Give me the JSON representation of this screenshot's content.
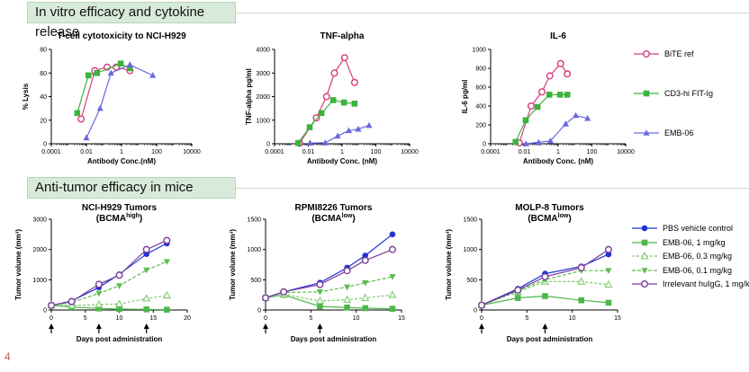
{
  "sections": {
    "top_title": "In vitro efficacy and cytokine release",
    "bottom_title": "Anti-tumor efficacy in mice"
  },
  "page_number": "4",
  "colors": {
    "bite": "#d63c7d",
    "fitig": "#3cb33c",
    "emb06": "#6a68e0",
    "pbs": "#2033d4",
    "emb_1": "#4cb74c",
    "emb_03": "#7ccc6c",
    "emb_01": "#5cbc4c",
    "irrelevant": "#7a3c98"
  },
  "legend_top": [
    {
      "label": "BiTE ref",
      "marker": "circle-open",
      "color": "#d63c7d"
    },
    {
      "label": "CD3-hi FIT-Ig",
      "marker": "square",
      "color": "#3cb33c"
    },
    {
      "label": "EMB-06",
      "marker": "triangle",
      "color": "#6a68e0"
    }
  ],
  "legend_bottom": [
    {
      "label": "PBS vehicle control",
      "marker": "circle",
      "color": "#2033d4",
      "dash": ""
    },
    {
      "label": "EMB-06, 1 mg/kg",
      "marker": "square",
      "color": "#4cb74c",
      "dash": ""
    },
    {
      "label": "EMB-06, 0.3 mg/kg",
      "marker": "triangle-open",
      "color": "#7ccc6c",
      "dash": "3,2"
    },
    {
      "label": "EMB-06, 0.1 mg/kg",
      "marker": "triangle-down",
      "color": "#5cbc4c",
      "dash": "4,2"
    },
    {
      "label": "Irrelevant huIgG, 1 mg/kg",
      "marker": "circle-open",
      "color": "#7a3c98",
      "dash": ""
    }
  ],
  "chart_data": [
    {
      "type": "line",
      "title": "T-cell cytotoxicity to NCI-H929",
      "xlabel": "Antibody Conc.(nM)",
      "ylabel": "% Lysis",
      "xscale": "log",
      "xlim": [
        0.0001,
        10000
      ],
      "xticks": [
        "0.0001",
        "0.01",
        "1",
        "100",
        "10000"
      ],
      "ylim": [
        0,
        80
      ],
      "yticks": [
        "0",
        "20",
        "40",
        "60",
        "80"
      ],
      "series": [
        {
          "name": "BiTE ref",
          "x": [
            0.005,
            0.03,
            0.15,
            0.5,
            3
          ],
          "y": [
            21,
            62,
            65,
            65,
            62
          ]
        },
        {
          "name": "CD3-hi FIT-Ig",
          "x": [
            0.003,
            0.013,
            0.04,
            0.9,
            3
          ],
          "y": [
            26,
            58,
            60,
            68,
            64
          ]
        },
        {
          "name": "EMB-06",
          "x": [
            0.01,
            0.06,
            0.25,
            3,
            60
          ],
          "y": [
            5,
            30,
            60,
            67,
            58
          ]
        }
      ]
    },
    {
      "type": "line",
      "title": "TNF-alpha",
      "xlabel": "Antibody Conc. (nM)",
      "ylabel": "TNF-alpha pg/ml",
      "xscale": "log",
      "xlim": [
        0.0001,
        10000
      ],
      "xticks": [
        "0.0001",
        "0.01",
        "1",
        "100",
        "10000"
      ],
      "ylim": [
        0,
        4000
      ],
      "yticks": [
        "0",
        "1000",
        "2000",
        "3000",
        "4000"
      ],
      "series": [
        {
          "name": "BiTE ref",
          "x": [
            0.003,
            0.03,
            0.12,
            0.35,
            1.4,
            5.5
          ],
          "y": [
            20,
            1100,
            2000,
            3000,
            3650,
            2600
          ]
        },
        {
          "name": "CD3-hi FIT-Ig",
          "x": [
            0.0025,
            0.012,
            0.06,
            0.3,
            1.3,
            5.5
          ],
          "y": [
            30,
            700,
            1300,
            1850,
            1750,
            1700
          ]
        },
        {
          "name": "EMB-06",
          "x": [
            0.0125,
            0.1,
            0.55,
            2.5,
            9,
            40
          ],
          "y": [
            30,
            40,
            330,
            560,
            620,
            780
          ]
        }
      ]
    },
    {
      "type": "line",
      "title": "IL-6",
      "xlabel": "Antibody Conc. (nM)",
      "ylabel": "IL-6 pg/ml",
      "xscale": "log",
      "xlim": [
        0.0001,
        10000
      ],
      "xticks": [
        "0.0001",
        "0.01",
        "1",
        "100",
        "10000"
      ],
      "ylim": [
        0,
        1000
      ],
      "yticks": [
        "0",
        "200",
        "400",
        "600",
        "800",
        "1000"
      ],
      "series": [
        {
          "name": "BiTE ref",
          "x": [
            0.005,
            0.025,
            0.11,
            0.32,
            1.4,
            3.5
          ],
          "y": [
            10,
            400,
            550,
            720,
            850,
            740
          ]
        },
        {
          "name": "CD3-hi FIT-Ig",
          "x": [
            0.003,
            0.012,
            0.06,
            0.3,
            1.3,
            3.5
          ],
          "y": [
            20,
            250,
            390,
            520,
            520,
            520
          ]
        },
        {
          "name": "EMB-06",
          "x": [
            0.0125,
            0.07,
            0.35,
            2.8,
            11,
            55
          ],
          "y": [
            0,
            15,
            30,
            210,
            300,
            270
          ]
        }
      ]
    },
    {
      "type": "line",
      "title": "NCI-H929 Tumors",
      "subtitle_base": "(BCMA",
      "subtitle_sup": "high",
      "subtitle_end": ")",
      "xlabel": "Days post administration",
      "ylabel": "Tumor volume (mm³)",
      "xlim": [
        0,
        20
      ],
      "xticks": [
        "0",
        "5",
        "10",
        "15",
        "20"
      ],
      "ylim": [
        0,
        3000
      ],
      "yticks": [
        "0",
        "1000",
        "2000",
        "3000"
      ],
      "dosing_days": [
        0,
        7,
        14
      ],
      "series": [
        {
          "name": "PBS vehicle control",
          "x": [
            0,
            3,
            7,
            10,
            14,
            17
          ],
          "y": [
            150,
            300,
            750,
            1180,
            1850,
            2200
          ]
        },
        {
          "name": "EMB-06, 1 mg/kg",
          "x": [
            0,
            3,
            7,
            10,
            14,
            17
          ],
          "y": [
            150,
            100,
            50,
            30,
            20,
            10
          ]
        },
        {
          "name": "EMB-06, 0.3 mg/kg",
          "x": [
            0,
            3,
            7,
            10,
            14,
            17
          ],
          "y": [
            150,
            150,
            180,
            200,
            380,
            480
          ]
        },
        {
          "name": "EMB-06, 0.1 mg/kg",
          "x": [
            0,
            3,
            7,
            10,
            14,
            17
          ],
          "y": [
            150,
            250,
            550,
            800,
            1320,
            1600
          ]
        },
        {
          "name": "Irrelevant huIgG, 1 mg/kg",
          "x": [
            0,
            3,
            7,
            10,
            14,
            17
          ],
          "y": [
            150,
            280,
            850,
            1150,
            2000,
            2300
          ]
        }
      ]
    },
    {
      "type": "line",
      "title": "RPMI8226 Tumors",
      "subtitle_base": "(BCMA",
      "subtitle_sup": "low",
      "subtitle_end": ")",
      "xlabel": "Days post administration",
      "ylabel": "Tumor volume (mm³)",
      "xlim": [
        0,
        15
      ],
      "xticks": [
        "0",
        "5",
        "10",
        "15"
      ],
      "ylim": [
        0,
        1500
      ],
      "yticks": [
        "0",
        "500",
        "1000",
        "1500"
      ],
      "dosing_days": [
        0,
        6
      ],
      "series": [
        {
          "name": "PBS vehicle control",
          "x": [
            0,
            2,
            6,
            9,
            11,
            14
          ],
          "y": [
            200,
            300,
            450,
            700,
            900,
            1250
          ]
        },
        {
          "name": "EMB-06, 1 mg/kg",
          "x": [
            0,
            2,
            6,
            9,
            11,
            14
          ],
          "y": [
            200,
            250,
            60,
            40,
            30,
            20
          ]
        },
        {
          "name": "EMB-06, 0.3 mg/kg",
          "x": [
            0,
            2,
            6,
            9,
            11,
            14
          ],
          "y": [
            200,
            260,
            150,
            170,
            200,
            250
          ]
        },
        {
          "name": "EMB-06, 0.1 mg/kg",
          "x": [
            0,
            2,
            6,
            9,
            11,
            14
          ],
          "y": [
            200,
            290,
            300,
            380,
            450,
            550
          ]
        },
        {
          "name": "Irrelevant huIgG, 1 mg/kg",
          "x": [
            0,
            2,
            6,
            9,
            11,
            14
          ],
          "y": [
            200,
            300,
            420,
            650,
            820,
            1000
          ]
        }
      ]
    },
    {
      "type": "line",
      "title": "MOLP-8 Tumors",
      "subtitle_base": "(BCMA",
      "subtitle_sup": "low",
      "subtitle_end": ")",
      "xlabel": "Days post administration",
      "ylabel": "Tumor volume (mm³)",
      "xlim": [
        0,
        15
      ],
      "xticks": [
        "0",
        "5",
        "10",
        "15"
      ],
      "ylim": [
        0,
        1500
      ],
      "yticks": [
        "0",
        "500",
        "1000",
        "1500"
      ],
      "dosing_days": [
        0,
        7
      ],
      "series": [
        {
          "name": "PBS vehicle control",
          "x": [
            0,
            4,
            7,
            11,
            14
          ],
          "y": [
            80,
            350,
            600,
            720,
            920
          ]
        },
        {
          "name": "EMB-06, 1 mg/kg",
          "x": [
            0,
            4,
            7,
            11,
            14
          ],
          "y": [
            80,
            200,
            230,
            160,
            120
          ]
        },
        {
          "name": "EMB-06, 0.3 mg/kg",
          "x": [
            0,
            4,
            7,
            11,
            14
          ],
          "y": [
            80,
            300,
            470,
            470,
            420
          ]
        },
        {
          "name": "EMB-06, 0.1 mg/kg",
          "x": [
            0,
            4,
            7,
            11,
            14
          ],
          "y": [
            80,
            320,
            500,
            650,
            650
          ]
        },
        {
          "name": "Irrelevant huIgG, 1 mg/kg",
          "x": [
            0,
            4,
            7,
            11,
            14
          ],
          "y": [
            80,
            330,
            550,
            700,
            1000
          ]
        }
      ]
    }
  ]
}
